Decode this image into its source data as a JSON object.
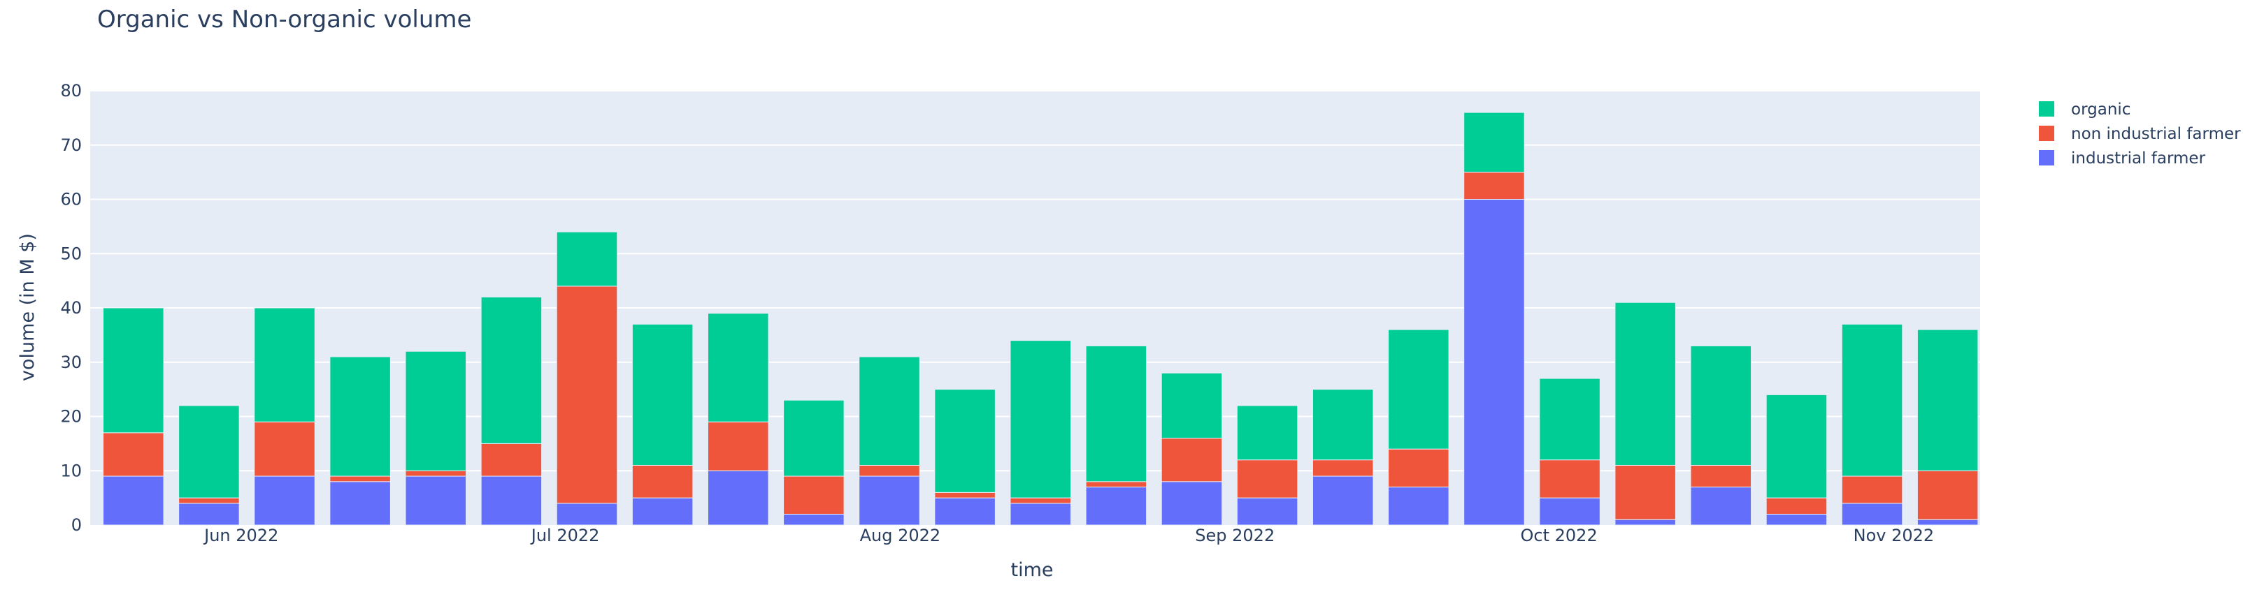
{
  "chart_data": {
    "type": "bar",
    "barmode": "stack",
    "title": "Organic vs Non-organic volume",
    "xlabel": "time",
    "ylabel": "volume (in M $)",
    "ylim": [
      0,
      80
    ],
    "yticks": [
      0,
      10,
      20,
      30,
      40,
      50,
      60,
      70,
      80
    ],
    "grid": true,
    "legend_position": "top-right",
    "x": [
      "2022-05-22",
      "2022-05-29",
      "2022-06-05",
      "2022-06-12",
      "2022-06-19",
      "2022-06-26",
      "2022-07-03",
      "2022-07-10",
      "2022-07-17",
      "2022-07-24",
      "2022-07-31",
      "2022-08-07",
      "2022-08-14",
      "2022-08-21",
      "2022-08-28",
      "2022-09-04",
      "2022-09-11",
      "2022-09-18",
      "2022-09-25",
      "2022-10-02",
      "2022-10-09",
      "2022-10-16",
      "2022-10-23",
      "2022-10-30",
      "2022-11-06"
    ],
    "xticks": [
      {
        "date": "2022-06-01",
        "label": "Jun 2022"
      },
      {
        "date": "2022-07-01",
        "label": "Jul 2022"
      },
      {
        "date": "2022-08-01",
        "label": "Aug 2022"
      },
      {
        "date": "2022-09-01",
        "label": "Sep 2022"
      },
      {
        "date": "2022-10-01",
        "label": "Oct 2022"
      },
      {
        "date": "2022-11-01",
        "label": "Nov 2022"
      }
    ],
    "xrange": [
      "2022-05-18",
      "2022-11-09"
    ],
    "series": [
      {
        "name": "industrial farmer",
        "color": "#636efa",
        "values": [
          9,
          4,
          9,
          8,
          9,
          9,
          4,
          5,
          10,
          2,
          9,
          5,
          4,
          7,
          8,
          5,
          9,
          7,
          60,
          5,
          1,
          7,
          2,
          4,
          1
        ]
      },
      {
        "name": "non industrial farmer",
        "color": "#ef553b",
        "values": [
          8,
          1,
          10,
          1,
          1,
          6,
          40,
          6,
          9,
          7,
          2,
          1,
          1,
          1,
          8,
          7,
          3,
          7,
          5,
          7,
          10,
          4,
          3,
          5,
          9
        ]
      },
      {
        "name": "organic",
        "color": "#00cc96",
        "values": [
          23,
          17,
          21,
          22,
          22,
          27,
          10,
          26,
          20,
          14,
          20,
          19,
          29,
          25,
          12,
          10,
          13,
          22,
          11,
          15,
          30,
          22,
          19,
          28,
          26
        ]
      }
    ],
    "legend_order": [
      "organic",
      "non industrial farmer",
      "industrial farmer"
    ],
    "colors": {
      "plot_bg": "#e5ecf6",
      "grid": "#ffffff",
      "text": "#2a3f5f"
    }
  }
}
